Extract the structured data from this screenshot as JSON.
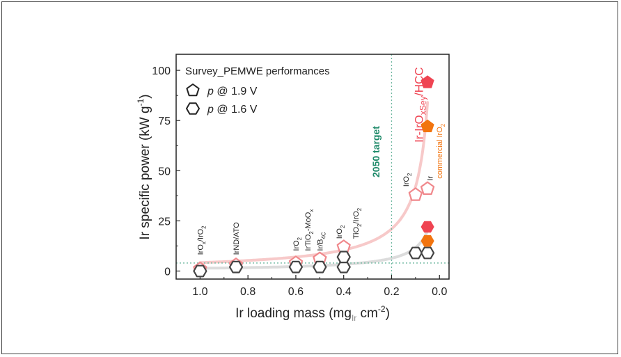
{
  "chart_data": {
    "type": "scatter",
    "title": "",
    "xlabel": "Ir loading mass (mg_Ir cm^-2)",
    "ylabel": "Ir specific power (kW g^-1)",
    "xlim": [
      1.1,
      -0.04
    ],
    "ylim": [
      -4,
      108
    ],
    "x_reversed": true,
    "x_ticks": [
      "1.0",
      "0.8",
      "0.6",
      "0.4",
      "0.2",
      "0.0"
    ],
    "y_ticks": [
      "0",
      "25",
      "50",
      "75",
      "100"
    ],
    "legend_title": "Survey_PEMWE performances",
    "legend_position": "top-left",
    "legend": [
      {
        "marker": "pentagon",
        "label_em": "p",
        "label": "@ 1.9 V"
      },
      {
        "marker": "hexagon",
        "label_em": "p",
        "label": "@ 1.6 V"
      }
    ],
    "target_label": "2050 target",
    "target_x": 0.2,
    "target_y": 4,
    "series": [
      {
        "name": "@ 1.9 V",
        "marker": "pentagon",
        "points": [
          {
            "x": 1.0,
            "y": 1,
            "style": "open-pink"
          },
          {
            "x": 0.85,
            "y": 3,
            "style": "open-pink"
          },
          {
            "x": 0.6,
            "y": 4,
            "style": "open-pink"
          },
          {
            "x": 0.5,
            "y": 6,
            "style": "open-pink"
          },
          {
            "x": 0.4,
            "y": 12,
            "style": "open-pink"
          },
          {
            "x": 0.1,
            "y": 38,
            "style": "open-pink"
          },
          {
            "x": 0.05,
            "y": 41,
            "style": "open-pink"
          },
          {
            "x": 0.05,
            "y": 72,
            "style": "filled-orange"
          },
          {
            "x": 0.05,
            "y": 94,
            "style": "filled-red"
          }
        ]
      },
      {
        "name": "@ 1.6 V",
        "marker": "hexagon",
        "points": [
          {
            "x": 1.0,
            "y": 0,
            "style": "open-gray"
          },
          {
            "x": 0.85,
            "y": 2,
            "style": "open-gray"
          },
          {
            "x": 0.6,
            "y": 2,
            "style": "open-gray"
          },
          {
            "x": 0.5,
            "y": 2,
            "style": "open-gray"
          },
          {
            "x": 0.4,
            "y": 2,
            "style": "open-gray"
          },
          {
            "x": 0.4,
            "y": 7,
            "style": "open-gray"
          },
          {
            "x": 0.1,
            "y": 9,
            "style": "open-gray"
          },
          {
            "x": 0.05,
            "y": 9,
            "style": "open-gray"
          },
          {
            "x": 0.05,
            "y": 15,
            "style": "filled-orange"
          },
          {
            "x": 0.05,
            "y": 22,
            "style": "filled-red"
          }
        ]
      }
    ],
    "annotations": [
      {
        "id": "irox-iro2",
        "text": "IrO_x/IrO_2",
        "x": 1.0,
        "y": 8
      },
      {
        "id": "irnd-ato",
        "text": "IrND/ATO",
        "x": 0.85,
        "y": 8
      },
      {
        "id": "iro2-a",
        "text": "IrO_2",
        "x": 0.6,
        "y": 10
      },
      {
        "id": "irtio2-moox",
        "text": "IrTiO_2-MoO_x",
        "x": 0.55,
        "y": 10
      },
      {
        "id": "ir-b4c",
        "text": "Ir/B_4C",
        "x": 0.5,
        "y": 10
      },
      {
        "id": "iro2-b",
        "text": "IrO_2",
        "x": 0.42,
        "y": 16
      },
      {
        "id": "tio2-iro2",
        "text": "TiO_2/IrO_2",
        "x": 0.35,
        "y": 16
      },
      {
        "id": "iro2-c",
        "text": "IrO_2",
        "x": 0.14,
        "y": 42
      },
      {
        "id": "ir",
        "text": "Ir",
        "x": 0.04,
        "y": 45
      },
      {
        "id": "ir-iroxsey-hcc",
        "text": "Ir-IrO_xSe_y/HCC",
        "x": 0.08,
        "y": 64
      },
      {
        "id": "commercial-iro2",
        "text": "commercial IrO_2",
        "x": 0.0,
        "y": 46
      }
    ],
    "colors": {
      "open_pink": "#f0888c",
      "open_gray": "#444444",
      "filled_red": "#ef4452",
      "filled_orange": "#f2740f",
      "target_line": "#6fb8a0",
      "target_text": "#1f8a6a",
      "trend_red": "#f7c9c9",
      "trend_gray": "#dcdcdc",
      "highlight_label": "#ef4452",
      "commercial_label": "#f2740f"
    }
  }
}
